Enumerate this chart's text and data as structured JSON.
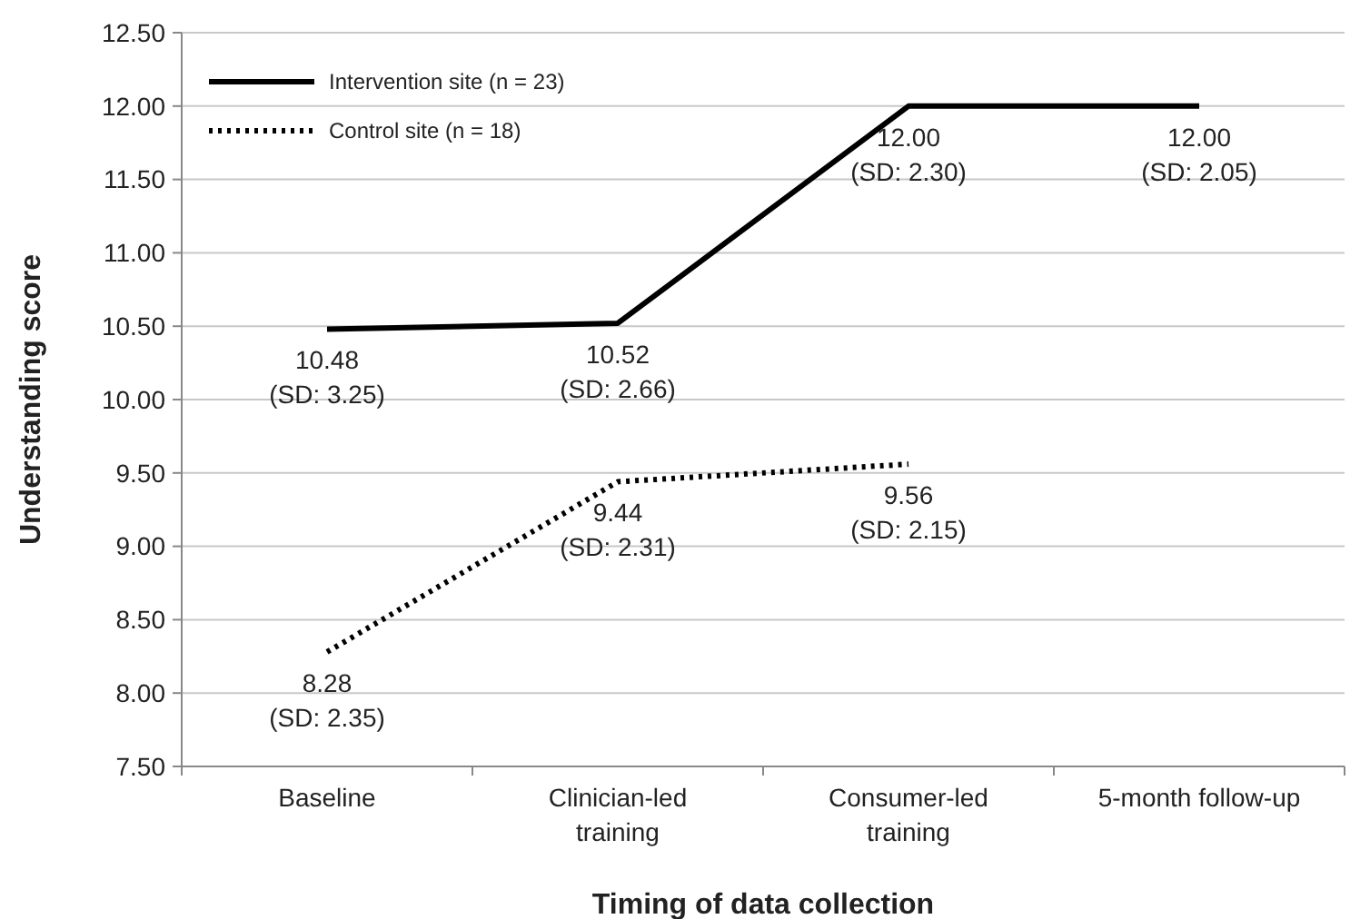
{
  "chart_data": {
    "type": "line",
    "xlabel": "Timing of data collection",
    "ylabel": "Understanding score",
    "categories": [
      "Baseline",
      "Clinician-led training",
      "Consumer-led training",
      "5-month follow-up"
    ],
    "series": [
      {
        "name": "Intervention site (n = 23)",
        "color": "#000000",
        "line_style": "solid",
        "values": [
          10.48,
          10.52,
          12.0,
          12.0
        ],
        "value_labels": [
          "10.48\n(SD: 3.25)",
          "10.52\n(SD: 2.66)",
          "12.00\n(SD: 2.30)",
          "12.00\n(SD: 2.05)"
        ]
      },
      {
        "name": "Control site (n = 18)",
        "color": "#000000",
        "line_style": "dotted",
        "values": [
          8.28,
          9.44,
          9.56,
          null
        ],
        "value_labels": [
          "8.28\n(SD: 2.35)",
          "9.44\n(SD: 2.31)",
          "9.56\n(SD: 2.15)",
          null
        ]
      }
    ],
    "ylim": [
      7.5,
      12.5
    ],
    "yticks": [
      {
        "value": 7.5,
        "label": "7.50"
      },
      {
        "value": 8,
        "label": "8.00"
      },
      {
        "value": 8.5,
        "label": "8.50"
      },
      {
        "value": 9,
        "label": "9.00"
      },
      {
        "value": 9.5,
        "label": "9.50"
      },
      {
        "value": 10,
        "label": "10.00"
      },
      {
        "value": 10.5,
        "label": "10.50"
      },
      {
        "value": 11,
        "label": "11.00"
      },
      {
        "value": 11.5,
        "label": "11.50"
      },
      {
        "value": 12,
        "label": "12.00"
      },
      {
        "value": 12.5,
        "label": "12.50"
      }
    ],
    "grid": "y",
    "legend": "top left",
    "marker": "none"
  }
}
